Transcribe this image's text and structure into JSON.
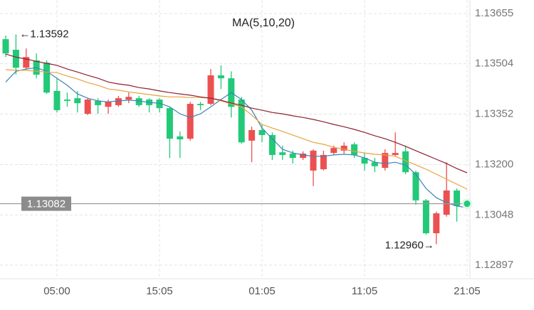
{
  "chart_data": {
    "type": "candlestick",
    "title": "MA(5,10,20)",
    "categories": [
      null,
      null,
      null,
      null,
      null,
      "05:00",
      null,
      null,
      null,
      null,
      null,
      null,
      null,
      null,
      null,
      "15:05",
      null,
      null,
      null,
      null,
      null,
      null,
      null,
      null,
      null,
      "01:05",
      null,
      null,
      null,
      null,
      null,
      null,
      null,
      null,
      null,
      "11:05",
      null,
      null,
      null,
      null,
      null,
      null,
      null,
      null,
      null,
      "21:05"
    ],
    "candles": {
      "open": [
        1.13578,
        1.13546,
        1.13492,
        1.13514,
        1.13507,
        1.13422,
        1.13396,
        1.134,
        1.13353,
        1.13392,
        1.13374,
        1.13379,
        1.13396,
        1.134,
        1.13396,
        1.13396,
        1.1337,
        1.13285,
        1.13278,
        1.13383,
        1.13383,
        1.13469,
        1.1346,
        1.13396,
        1.13272,
        1.13304,
        1.13289,
        1.13237,
        1.13233,
        1.1322,
        1.13182,
        1.13186,
        1.13235,
        1.13242,
        1.13261,
        1.1322,
        1.13207,
        1.1319,
        1.13229,
        1.1324,
        1.13177,
        1.13092,
        1.12993,
        1.13049,
        1.13122,
        1.13082
      ],
      "high": [
        1.13589,
        1.13592,
        1.1355,
        1.13535,
        1.13514,
        1.1346,
        1.13417,
        1.13422,
        1.134,
        1.134,
        1.13396,
        1.13407,
        1.13417,
        1.13407,
        1.134,
        1.134,
        1.13374,
        1.133,
        1.13389,
        1.13389,
        1.13488,
        1.13499,
        1.13481,
        1.13404,
        1.13314,
        1.13321,
        1.13297,
        1.13257,
        1.13242,
        1.1324,
        1.13246,
        1.13242,
        1.13257,
        1.13267,
        1.13267,
        1.13235,
        1.1322,
        1.13246,
        1.13297,
        1.13257,
        1.13182,
        1.13096,
        1.13058,
        1.13207,
        1.13128,
        1.13082
      ],
      "low": [
        1.13524,
        1.13471,
        1.13486,
        1.1346,
        1.13413,
        1.13357,
        1.13374,
        1.13357,
        1.13349,
        1.13353,
        1.13353,
        1.13374,
        1.13385,
        1.13374,
        1.13357,
        1.13357,
        1.1322,
        1.1322,
        1.13272,
        1.13364,
        1.13379,
        1.13428,
        1.13342,
        1.13263,
        1.13207,
        1.13267,
        1.13214,
        1.13214,
        1.13203,
        1.13214,
        1.13135,
        1.13182,
        1.13229,
        1.13233,
        1.1322,
        1.13182,
        1.13177,
        1.13182,
        1.13225,
        1.13171,
        1.13079,
        1.12989,
        1.1296,
        1.13043,
        1.13028,
        1.13082
      ],
      "close": [
        1.13535,
        1.13492,
        1.13524,
        1.13471,
        1.13417,
        1.13364,
        1.13392,
        1.13385,
        1.13396,
        1.13379,
        1.13389,
        1.134,
        1.13404,
        1.13379,
        1.13379,
        1.1337,
        1.13278,
        1.13276,
        1.13383,
        1.13379,
        1.13469,
        1.1346,
        1.13374,
        1.13267,
        1.13304,
        1.13289,
        1.13229,
        1.13229,
        1.1322,
        1.13233,
        1.13242,
        1.13229,
        1.1325,
        1.13257,
        1.13229,
        1.13203,
        1.13195,
        1.13235,
        1.13235,
        1.13177,
        1.13092,
        1.12993,
        1.13053,
        1.13122,
        1.13075,
        1.13082
      ]
    },
    "up_color": "#ec5050",
    "down_color": "#22c977",
    "moving_averages": [
      {
        "color": "#3d84b8",
        "values": [
          1.13449,
          1.13481,
          1.13488,
          1.13492,
          1.13481,
          1.1346,
          1.13439,
          1.13413,
          1.134,
          1.13392,
          1.13389,
          1.13392,
          1.13394,
          1.13392,
          1.13387,
          1.13385,
          1.13374,
          1.13353,
          1.13342,
          1.13353,
          1.13374,
          1.13396,
          1.13417,
          1.13396,
          1.13364,
          1.1331,
          1.13278,
          1.13246,
          1.13235,
          1.13229,
          1.13225,
          1.13225,
          1.13229,
          1.13231,
          1.13229,
          1.1322,
          1.13207,
          1.13203,
          1.13207,
          1.13199,
          1.13171,
          1.13128,
          1.131,
          1.13085,
          1.13075,
          1.1307
        ]
      },
      {
        "color": "#e8a33c",
        "values": [
          1.13486,
          1.13484,
          1.13484,
          1.13481,
          1.13479,
          1.13477,
          1.13467,
          1.13458,
          1.13447,
          1.13439,
          1.13428,
          1.13424,
          1.13419,
          1.13415,
          1.13411,
          1.13407,
          1.13404,
          1.13404,
          1.13402,
          1.13402,
          1.134,
          1.13392,
          1.13383,
          1.13374,
          1.13349,
          1.13321,
          1.1331,
          1.133,
          1.13289,
          1.13278,
          1.13267,
          1.13261,
          1.13252,
          1.13246,
          1.1324,
          1.13235,
          1.13231,
          1.13229,
          1.13225,
          1.13212,
          1.13199,
          1.13186,
          1.13171,
          1.13156,
          1.13141,
          1.13126
        ]
      },
      {
        "color": "#8e1f33",
        "values": [
          1.13533,
          1.13524,
          1.13518,
          1.13511,
          1.13505,
          1.13499,
          1.13488,
          1.13479,
          1.13469,
          1.1346,
          1.13449,
          1.13443,
          1.13439,
          1.13432,
          1.13428,
          1.13422,
          1.13417,
          1.13413,
          1.13409,
          1.13404,
          1.134,
          1.13394,
          1.13385,
          1.13379,
          1.1337,
          1.13364,
          1.13357,
          1.13353,
          1.13347,
          1.13342,
          1.13336,
          1.13329,
          1.13321,
          1.13314,
          1.13306,
          1.13297,
          1.13287,
          1.13278,
          1.13267,
          1.13255,
          1.13242,
          1.13229,
          1.13216,
          1.13203,
          1.13188,
          1.13175
        ]
      }
    ],
    "high_label": {
      "value": 1.13592,
      "label": "←1.13592"
    },
    "low_label": {
      "value": 1.1296,
      "label": "1.12960→"
    },
    "last_price": 1.13082,
    "ylim": [
      1.12856,
      1.13696
    ],
    "yticks": [
      1.13655,
      1.13504,
      1.13352,
      {
        "value": 1.132,
        "label": "1.13200"
      },
      1.13048,
      1.12897
    ],
    "grid": true
  }
}
